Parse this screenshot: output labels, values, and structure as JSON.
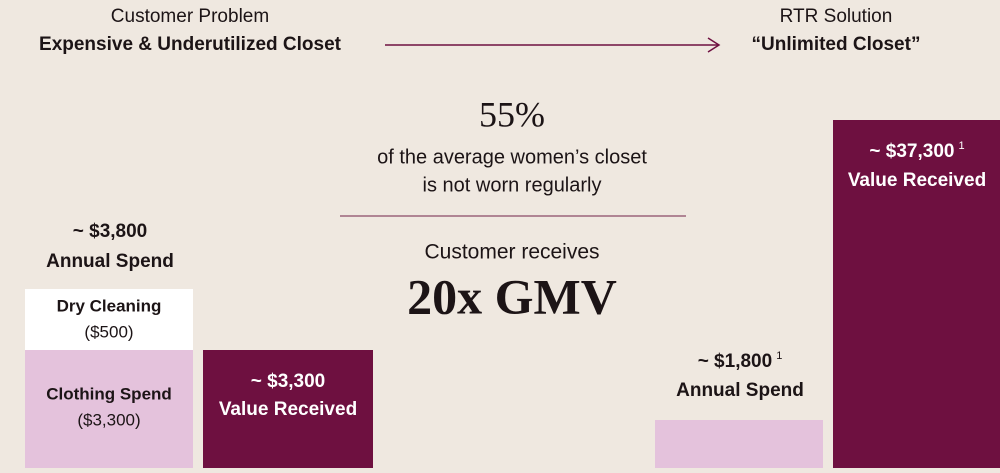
{
  "header": {
    "problem_label": "Customer Problem",
    "problem_title": "Expensive & Underutilized Closet",
    "solution_label": "RTR Solution",
    "solution_title": "“Unlimited Closet”"
  },
  "center": {
    "stat": "55%",
    "stat_line1": "of the average women’s closet",
    "stat_line2": "is not worn regularly",
    "receives": "Customer receives",
    "multiple": "20x GMV"
  },
  "left_total": {
    "amount": "~ $3,800",
    "label": "Annual Spend"
  },
  "left_stack": {
    "top_label": "Dry Cleaning",
    "top_amount": "($500)",
    "bottom_label": "Clothing Spend",
    "bottom_amount": "($3,300)"
  },
  "left_value": {
    "amount": "~ $3,300",
    "label": "Value Received"
  },
  "right_spend": {
    "amount": "~ $1,800",
    "note": "1",
    "label": "Annual Spend"
  },
  "right_value": {
    "amount": "~ $37,300",
    "note": "1",
    "label": "Value Received"
  }
}
